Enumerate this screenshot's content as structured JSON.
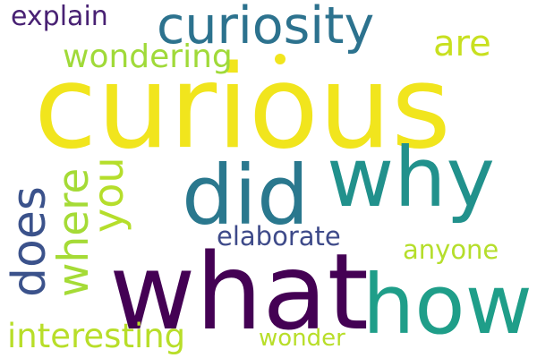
{
  "words": [
    {
      "text": "curious",
      "color": "#f1e51d"
    },
    {
      "text": "what",
      "color": "#440154"
    },
    {
      "text": "how",
      "color": "#1f9e89"
    },
    {
      "text": "why",
      "color": "#21918c"
    },
    {
      "text": "did",
      "color": "#2a788e"
    },
    {
      "text": "curiosity",
      "color": "#2c728e"
    },
    {
      "text": "does",
      "color": "#3b528b"
    },
    {
      "text": "where",
      "color": "#a5db36"
    },
    {
      "text": "you",
      "color": "#b5de2b"
    },
    {
      "text": "are",
      "color": "#c8e020"
    },
    {
      "text": "wondering",
      "color": "#a0da39"
    },
    {
      "text": "explain",
      "color": "#482173"
    },
    {
      "text": "interesting",
      "color": "#b8de29"
    },
    {
      "text": "elaborate",
      "color": "#3e4a89"
    },
    {
      "text": "anyone",
      "color": "#b5de2b"
    },
    {
      "text": "wonder",
      "color": "#b8de29"
    }
  ]
}
